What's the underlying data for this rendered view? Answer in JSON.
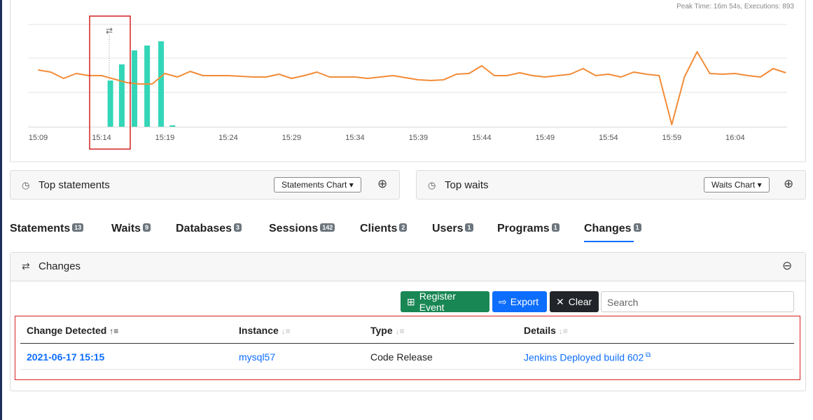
{
  "chart_data": {
    "type": "combo",
    "subtitle": "Peak Time: 16m 54s, Executions: 893",
    "series": [
      {
        "type": "bar",
        "color": "#34d6b8",
        "x": [
          14.7,
          15.6,
          16.6,
          17.6,
          18.7,
          19.6
        ],
        "values": [
          66,
          89,
          109,
          116,
          122,
          2
        ]
      },
      {
        "type": "line",
        "color": "#f28c38",
        "x": [
          9,
          10,
          11,
          12,
          13,
          14,
          15,
          16,
          17,
          18,
          19,
          20,
          21,
          22,
          23,
          24,
          25,
          26,
          27,
          28,
          29,
          30,
          31,
          32,
          33,
          34,
          35,
          36,
          37,
          38,
          39,
          40,
          41,
          42,
          43,
          44,
          45,
          46,
          47,
          48,
          49,
          50,
          51,
          52,
          53,
          54,
          55,
          56,
          57,
          58,
          59,
          60,
          61,
          62,
          63,
          64,
          65,
          66,
          67,
          68
        ],
        "values": [
          81,
          78,
          69,
          76,
          73,
          73,
          68,
          63,
          61,
          61,
          76,
          71,
          79,
          73,
          73,
          73,
          72,
          71,
          71,
          75,
          69,
          73,
          78,
          71,
          71,
          71,
          69,
          71,
          73,
          70,
          67,
          66,
          67,
          75,
          76,
          87,
          73,
          73,
          77,
          73,
          71,
          73,
          75,
          83,
          73,
          75,
          71,
          78,
          75,
          73,
          3,
          71,
          107,
          76,
          75,
          76,
          73,
          71,
          83,
          77
        ]
      }
    ],
    "xlim": [
      8.2,
      68.1
    ],
    "ylim": [
      0,
      146
    ],
    "xticks": [
      {
        "value": 9,
        "label": "15:09"
      },
      {
        "value": 14,
        "label": "15:14"
      },
      {
        "value": 19,
        "label": "15:19"
      },
      {
        "value": 24,
        "label": "15:24"
      },
      {
        "value": 29,
        "label": "15:29"
      },
      {
        "value": 34,
        "label": "15:34"
      },
      {
        "value": 39,
        "label": "15:39"
      },
      {
        "value": 44,
        "label": "15:44"
      },
      {
        "value": 49,
        "label": "15:49"
      },
      {
        "value": 54,
        "label": "15:54"
      },
      {
        "value": 59,
        "label": "15:59"
      },
      {
        "value": 64,
        "label": "16:04"
      }
    ]
  },
  "panels": {
    "top_statements": {
      "title": "Top statements",
      "button": "Statements Chart"
    },
    "top_waits": {
      "title": "Top waits",
      "button": "Waits Chart"
    }
  },
  "tabs": [
    {
      "label": "Statements",
      "count": 13
    },
    {
      "label": "Waits",
      "count": 9
    },
    {
      "label": "Databases",
      "count": 3
    },
    {
      "label": "Sessions",
      "count": 142
    },
    {
      "label": "Clients",
      "count": 2
    },
    {
      "label": "Users",
      "count": 1
    },
    {
      "label": "Programs",
      "count": 1
    },
    {
      "label": "Changes",
      "count": 1
    }
  ],
  "changes": {
    "title": "Changes",
    "buttons": {
      "register": "Register Event",
      "export": "Export",
      "clear": "Clear"
    },
    "search_placeholder": "Search",
    "table": {
      "headers": [
        "Change Detected",
        "Instance",
        "Type",
        "Details"
      ],
      "rows": [
        [
          "2021-06-17 15:15",
          "mysql57",
          "Code Release",
          "Jenkins Deployed build 602"
        ]
      ]
    }
  }
}
